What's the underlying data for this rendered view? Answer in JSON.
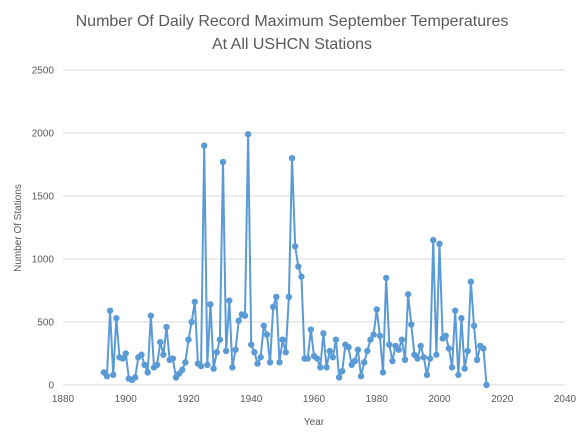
{
  "chart_data": {
    "type": "line",
    "title_lines": [
      "Number Of Daily Record Maximum September Temperatures",
      "At All USHCN Stations"
    ],
    "xlabel": "Year",
    "ylabel": "Number Of Stations",
    "xlim": [
      1880,
      2040
    ],
    "ylim": [
      0,
      2500
    ],
    "xticks": [
      1880,
      1900,
      1920,
      1940,
      1960,
      1980,
      2000,
      2020,
      2040
    ],
    "yticks": [
      0,
      500,
      1000,
      1500,
      2000,
      2500
    ],
    "grid": "horizontal",
    "legend": "none",
    "series_color": "#5b9bd5",
    "grid_color": "#d9d9d9",
    "text_color": "#595959",
    "series": [
      {
        "x": [
          1893,
          1894,
          1895,
          1896,
          1897,
          1898,
          1899,
          1900,
          1901,
          1902,
          1903,
          1904,
          1905,
          1906,
          1907,
          1908,
          1909,
          1910,
          1911,
          1912,
          1913,
          1914,
          1915,
          1916,
          1917,
          1918,
          1919,
          1920,
          1921,
          1922,
          1923,
          1924,
          1925,
          1926,
          1927,
          1928,
          1929,
          1930,
          1931,
          1932,
          1933,
          1934,
          1935,
          1936,
          1937,
          1938,
          1939,
          1940,
          1941,
          1942,
          1943,
          1944,
          1945,
          1946,
          1947,
          1948,
          1949,
          1950,
          1951,
          1952,
          1953,
          1954,
          1955,
          1956,
          1957,
          1958,
          1959,
          1960,
          1961,
          1962,
          1963,
          1964,
          1965,
          1966,
          1967,
          1968,
          1969,
          1970,
          1971,
          1972,
          1973,
          1974,
          1975,
          1976,
          1977,
          1978,
          1979,
          1980,
          1981,
          1982,
          1983,
          1984,
          1985,
          1986,
          1987,
          1988,
          1989,
          1990,
          1991,
          1992,
          1993,
          1994,
          1995,
          1996,
          1997,
          1998,
          1999,
          2000,
          2001,
          2002,
          2003,
          2004,
          2005,
          2006,
          2007,
          2008,
          2009,
          2010,
          2011,
          2012,
          2013,
          2014,
          2015
        ],
        "y": [
          100,
          70,
          590,
          80,
          530,
          220,
          210,
          250,
          50,
          40,
          60,
          220,
          240,
          160,
          100,
          550,
          140,
          160,
          340,
          240,
          460,
          200,
          210,
          60,
          90,
          120,
          180,
          360,
          500,
          660,
          170,
          150,
          1900,
          160,
          640,
          130,
          260,
          360,
          1770,
          270,
          670,
          140,
          280,
          510,
          560,
          550,
          1990,
          320,
          260,
          170,
          220,
          470,
          400,
          180,
          620,
          700,
          180,
          360,
          260,
          700,
          1800,
          1100,
          940,
          860,
          210,
          210,
          440,
          230,
          210,
          140,
          410,
          140,
          270,
          220,
          360,
          60,
          110,
          320,
          300,
          160,
          190,
          280,
          70,
          180,
          270,
          360,
          400,
          600,
          390,
          100,
          850,
          320,
          190,
          310,
          280,
          360,
          200,
          720,
          480,
          240,
          210,
          310,
          220,
          80,
          210,
          1150,
          240,
          1120,
          370,
          390,
          290,
          140,
          590,
          80,
          530,
          130,
          270,
          820,
          470,
          200,
          310,
          290,
          0
        ]
      }
    ]
  }
}
